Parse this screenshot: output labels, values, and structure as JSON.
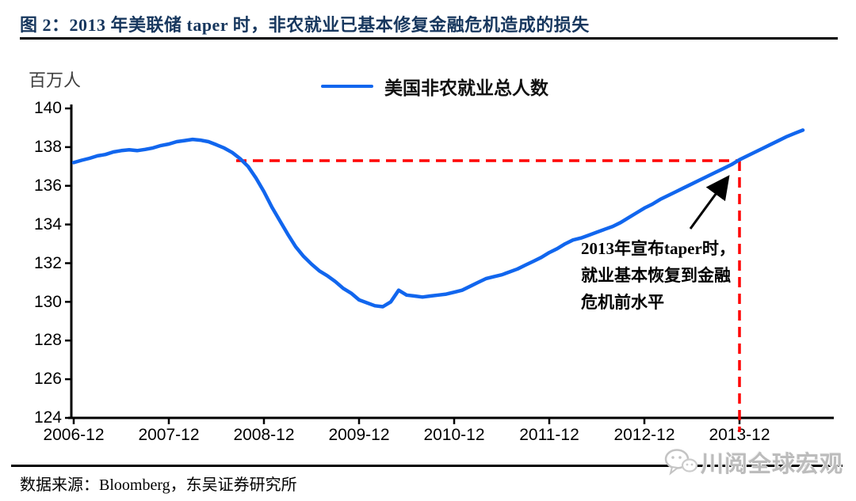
{
  "header": {
    "title": "图 2：2013 年美联储 taper 时，非农就业已基本修复金融危机造成的损失"
  },
  "chart_data": {
    "type": "line",
    "unit_label": "百万人",
    "legend_position": "top-center",
    "grid": false,
    "ylim": [
      124,
      140
    ],
    "y_ticks": [
      140,
      138,
      136,
      134,
      132,
      130,
      128,
      126,
      124
    ],
    "x_tick_labels": [
      "2006-12",
      "2007-12",
      "2008-12",
      "2009-12",
      "2010-12",
      "2011-12",
      "2012-12",
      "2013-12"
    ],
    "x_tick_indices": [
      0,
      12,
      24,
      36,
      48,
      60,
      72,
      84
    ],
    "x_start": "2006-12",
    "x_frequency": "monthly",
    "series": [
      {
        "name": "美国非农就业总人数",
        "color": "#1166EE",
        "values": [
          137.2,
          137.32,
          137.42,
          137.55,
          137.62,
          137.75,
          137.82,
          137.86,
          137.82,
          137.88,
          137.96,
          138.08,
          138.16,
          138.28,
          138.34,
          138.4,
          138.36,
          138.28,
          138.12,
          137.95,
          137.72,
          137.4,
          137.0,
          136.4,
          135.7,
          134.9,
          134.2,
          133.5,
          132.85,
          132.35,
          131.95,
          131.6,
          131.35,
          131.05,
          130.7,
          130.45,
          130.1,
          129.95,
          129.8,
          129.75,
          130.0,
          130.6,
          130.35,
          130.3,
          130.25,
          130.3,
          130.35,
          130.4,
          130.5,
          130.6,
          130.8,
          131.0,
          131.2,
          131.3,
          131.4,
          131.55,
          131.7,
          131.9,
          132.1,
          132.3,
          132.55,
          132.75,
          133.0,
          133.2,
          133.3,
          133.45,
          133.6,
          133.75,
          133.9,
          134.1,
          134.35,
          134.6,
          134.85,
          135.05,
          135.3,
          135.5,
          135.7,
          135.9,
          136.1,
          136.3,
          136.5,
          136.7,
          136.9,
          137.1,
          137.35,
          137.55,
          137.75,
          137.95,
          138.15,
          138.35,
          138.55,
          138.72,
          138.88
        ]
      }
    ],
    "reference_lines": {
      "color": "#FF0000",
      "style": "dashed",
      "horizontal": {
        "value": 137.3,
        "start_index": 20.5,
        "end_index": 84
      },
      "vertical": {
        "index": 84,
        "from_value": 137.3
      }
    },
    "annotation": {
      "lines": [
        "2013年宣布taper时，",
        "就业基本恢复到金融",
        "危机前水平"
      ]
    }
  },
  "footer": {
    "source": "数据来源：Bloomberg，东吴证券研究所",
    "watermark": "川阅全球宏观"
  }
}
